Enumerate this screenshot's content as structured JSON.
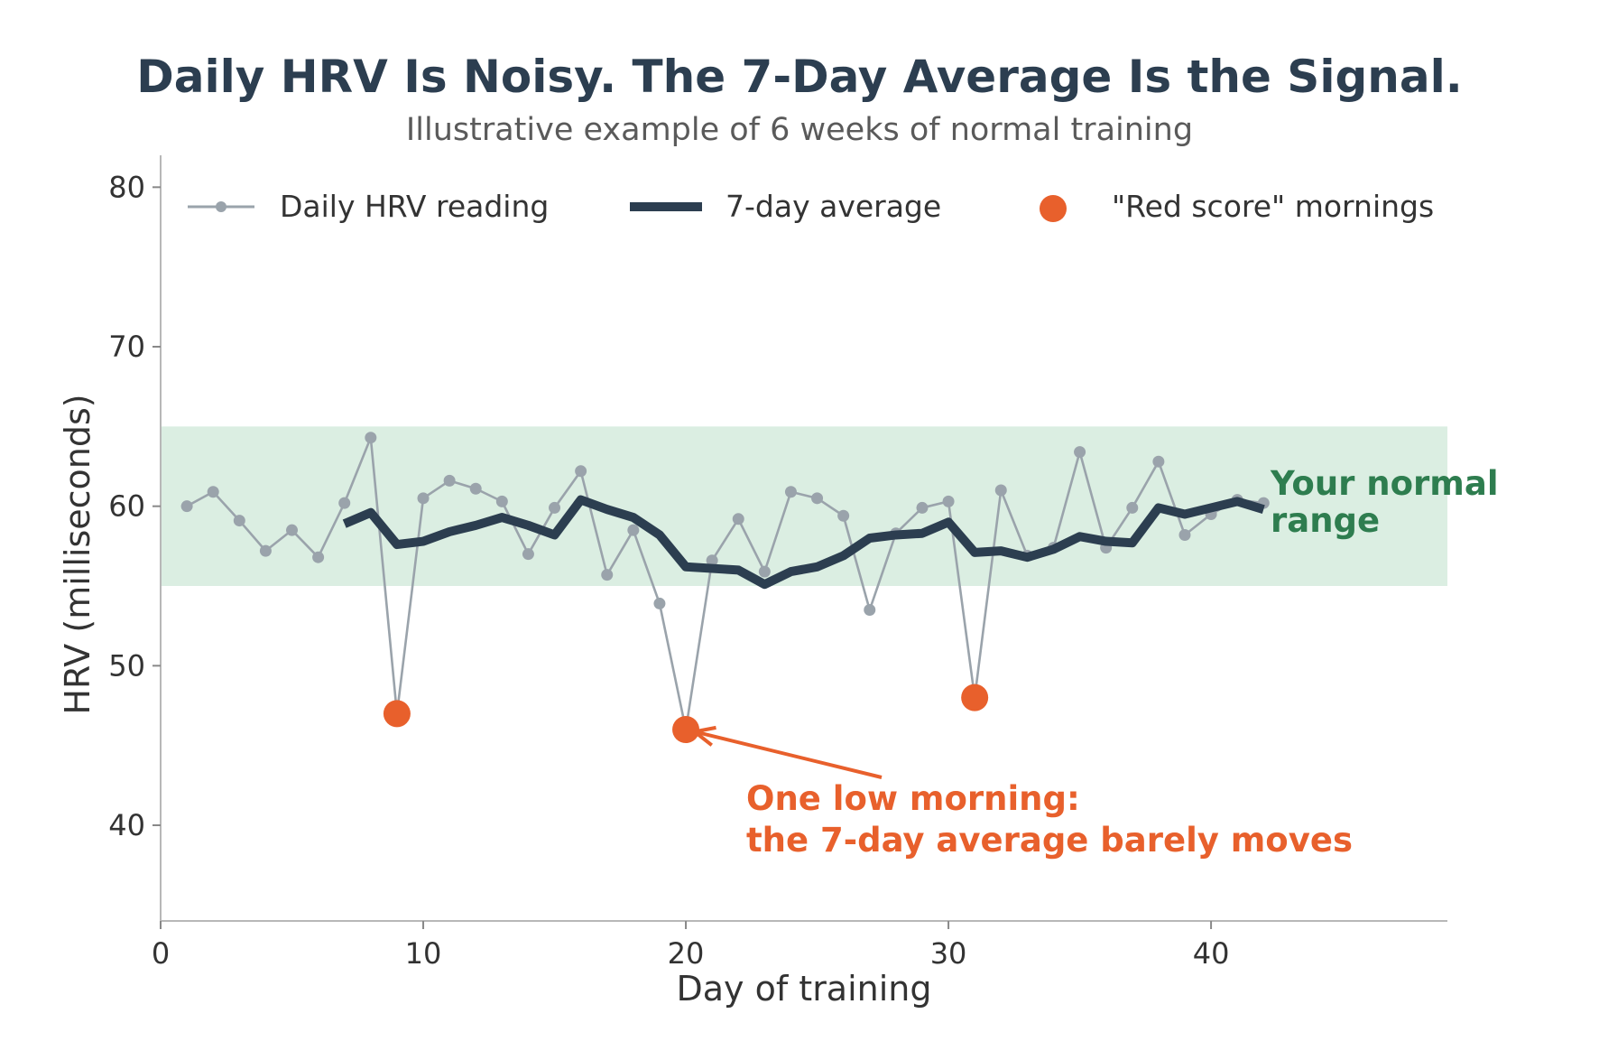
{
  "chart_data": {
    "type": "line",
    "title": "Daily HRV Is Noisy. The 7-Day Average Is the Signal.",
    "subtitle": "Illustrative example of 6 weeks of normal training",
    "xlabel": "Day of training",
    "ylabel": "HRV (milliseconds)",
    "xlim": [
      0,
      49
    ],
    "ylim": [
      34,
      82
    ],
    "xticks": [
      0,
      10,
      20,
      30,
      40
    ],
    "yticks": [
      40,
      50,
      60,
      70,
      80
    ],
    "grid": false,
    "legend_position": "top",
    "normal_range": {
      "low": 55,
      "high": 65,
      "label_lines": [
        "Your normal",
        "range"
      ],
      "color": "#2e7d4f"
    },
    "series": [
      {
        "name": "Daily HRV reading",
        "color": "#9aa3ab",
        "x": [
          1,
          2,
          3,
          4,
          5,
          6,
          7,
          8,
          9,
          10,
          11,
          12,
          13,
          14,
          15,
          16,
          17,
          18,
          19,
          20,
          21,
          22,
          23,
          24,
          25,
          26,
          27,
          28,
          29,
          30,
          31,
          32,
          33,
          34,
          35,
          36,
          37,
          38,
          39,
          40,
          41,
          42
        ],
        "values": [
          60.0,
          60.9,
          59.1,
          57.2,
          58.5,
          56.8,
          60.2,
          64.3,
          47.0,
          60.5,
          61.6,
          61.1,
          60.3,
          57.0,
          59.9,
          62.2,
          55.7,
          58.5,
          53.9,
          46.0,
          56.6,
          59.2,
          55.9,
          60.9,
          60.5,
          59.4,
          53.5,
          58.3,
          59.9,
          60.3,
          48.0,
          61.0,
          56.9,
          57.4,
          63.4,
          57.4,
          59.9,
          62.8,
          58.2,
          59.5,
          60.4,
          60.2
        ]
      },
      {
        "name": "7-day average",
        "color": "#2c3e50",
        "x": [
          7,
          8,
          9,
          10,
          11,
          12,
          13,
          14,
          15,
          16,
          17,
          18,
          19,
          20,
          21,
          22,
          23,
          24,
          25,
          26,
          27,
          28,
          29,
          30,
          31,
          32,
          33,
          34,
          35,
          36,
          37,
          38,
          39,
          40,
          41,
          42
        ],
        "values": [
          58.9,
          59.6,
          57.6,
          57.8,
          58.4,
          58.8,
          59.3,
          58.8,
          58.2,
          60.4,
          59.8,
          59.3,
          58.2,
          56.2,
          56.1,
          56.0,
          55.1,
          55.9,
          56.2,
          56.9,
          58.0,
          58.2,
          58.3,
          59.0,
          57.1,
          57.2,
          56.8,
          57.3,
          58.1,
          57.8,
          57.7,
          59.9,
          59.5,
          59.9,
          60.3,
          59.8
        ]
      },
      {
        "name": "\"Red score\" mornings",
        "color": "#e8602c",
        "x": [
          9,
          20,
          31
        ],
        "values": [
          47.0,
          46.0,
          48.0
        ]
      }
    ],
    "annotation": {
      "lines": [
        "One low morning:",
        "the 7-day average barely moves"
      ],
      "target_x": 20,
      "target_y": 46.0,
      "color": "#e8602c"
    }
  }
}
